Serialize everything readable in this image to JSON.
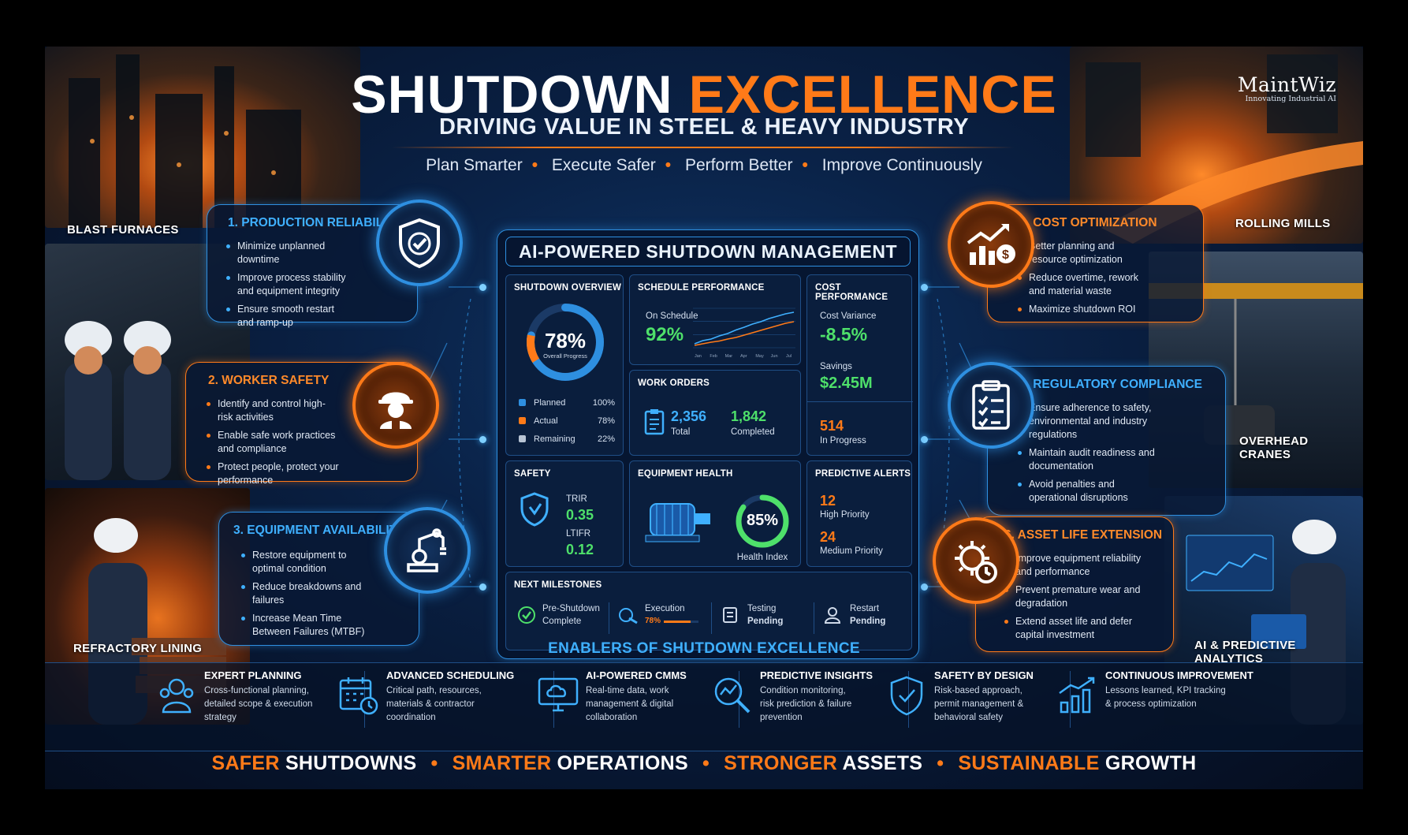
{
  "brand": {
    "name": "MaintWiz",
    "tagline": "Innovating Industrial AI"
  },
  "title_part1": "SHUTDOWN",
  "title_part2": "EXCELLENCE",
  "subtitle": "DRIVING VALUE IN STEEL & HEAVY INDUSTRY",
  "taglines": [
    "Plan Smarter",
    "Execute Safer",
    "Perform Better",
    "Improve Continuously"
  ],
  "photo_labels": {
    "blast": "BLAST FURNACES",
    "refractory": "REFRACTORY LINING",
    "rolling": "ROLLING MILLS",
    "cranes": "OVERHEAD CRANES",
    "ai": "AI & PREDICTIVE ANALYTICS"
  },
  "pillars": [
    {
      "title": "1. PRODUCTION RELIABILITY",
      "items": [
        "Minimize unplanned downtime",
        "Improve process stability and equipment integrity",
        "Ensure smooth restart and ramp-up"
      ],
      "icon": "shield-check-icon"
    },
    {
      "title": "2. WORKER SAFETY",
      "items": [
        "Identify and control high-risk activities",
        "Enable safe work practices and compliance",
        "Protect people, protect your performance"
      ],
      "icon": "worker-icon"
    },
    {
      "title": "3. EQUIPMENT AVAILABILITY",
      "items": [
        "Restore equipment to optimal condition",
        "Reduce breakdowns and failures",
        "Increase Mean Time Between Failures (MTBF)"
      ],
      "icon": "robot-arm-icon"
    },
    {
      "title": "4. COST OPTIMIZATION",
      "items": [
        "Better planning and resource optimization",
        "Reduce overtime, rework and material waste",
        "Maximize shutdown ROI"
      ],
      "icon": "cost-chart-icon"
    },
    {
      "title": "5. REGULATORY COMPLIANCE",
      "items": [
        "Ensure adherence to safety, environmental and industry regulations",
        "Maintain audit readiness and documentation",
        "Avoid penalties and operational disruptions"
      ],
      "icon": "clipboard-icon"
    },
    {
      "title": "6. ASSET LIFE EXTENSION",
      "items": [
        "Improve equipment reliability and performance",
        "Prevent premature wear and degradation",
        "Extend asset life and defer capital investment"
      ],
      "icon": "gear-clock-icon"
    }
  ],
  "dashboard": {
    "title": "AI-POWERED SHUTDOWN MANAGEMENT",
    "overview": {
      "title": "SHUTDOWN OVERVIEW",
      "value": "78%",
      "value_num": 78,
      "caption": "Overall Progress",
      "legend": [
        {
          "label": "Planned",
          "value": "100%",
          "color": "#2e8fe0"
        },
        {
          "label": "Actual",
          "value": "78%",
          "color": "#ff7a18"
        },
        {
          "label": "Remaining",
          "value": "22%",
          "color": "#b8c4d4"
        }
      ]
    },
    "schedule": {
      "title": "SCHEDULE PERFORMANCE",
      "label": "On Schedule",
      "value": "92%",
      "ticks": [
        "Jan",
        "Feb",
        "Mar",
        "Apr",
        "May",
        "Jun",
        "Jul"
      ],
      "planned": [
        10,
        18,
        22,
        30,
        36,
        45,
        52,
        60,
        66,
        74,
        80,
        86,
        90
      ],
      "actual": [
        6,
        10,
        14,
        17,
        22,
        26,
        32,
        38,
        44,
        50,
        56,
        62,
        66
      ]
    },
    "cost": {
      "title": "COST PERFORMANCE",
      "variance_label": "Cost Variance",
      "variance": "-8.5%",
      "savings_label": "Savings",
      "savings": "$2.45M"
    },
    "work_orders": {
      "title": "WORK ORDERS",
      "total": "2,356",
      "total_label": "Total",
      "completed": "1,842",
      "completed_label": "Completed",
      "in_progress": "514",
      "in_progress_label": "In Progress"
    },
    "safety": {
      "title": "SAFETY",
      "trir_label": "TRIR",
      "trir": "0.35",
      "ltifr_label": "LTIFR",
      "ltifr": "0.12"
    },
    "equipment": {
      "title": "EQUIPMENT HEALTH",
      "value": "85%",
      "value_num": 85,
      "caption": "Health Index"
    },
    "alerts": {
      "title": "PREDICTIVE ALERTS",
      "high": "12",
      "high_label": "High Priority",
      "medium": "24",
      "medium_label": "Medium Priority"
    },
    "milestones": {
      "title": "NEXT MILESTONES",
      "items": [
        {
          "l1": "Pre-Shutdown",
          "l2": "Complete"
        },
        {
          "l1": "Execution",
          "l2": "78%",
          "progress": 0.78
        },
        {
          "l1": "Testing",
          "l2": "Pending"
        },
        {
          "l1": "Restart",
          "l2": "Pending"
        }
      ]
    }
  },
  "enablers_title": "ENABLERS OF SHUTDOWN EXCELLENCE",
  "enablers": [
    {
      "title": "EXPERT PLANNING",
      "desc": [
        "Cross-functional planning,",
        "detailed scope & execution",
        "strategy"
      ]
    },
    {
      "title": "ADVANCED SCHEDULING",
      "desc": [
        "Critical path, resources,",
        "materials & contractor",
        "coordination"
      ]
    },
    {
      "title": "AI-POWERED CMMS",
      "desc": [
        "Real-time data, work",
        "management & digital",
        "collaboration"
      ]
    },
    {
      "title": "PREDICTIVE INSIGHTS",
      "desc": [
        "Condition monitoring,",
        "risk prediction & failure",
        "prevention"
      ]
    },
    {
      "title": "SAFETY BY DESIGN",
      "desc": [
        "Risk-based approach,",
        "permit management &",
        "behavioral safety"
      ]
    },
    {
      "title": "CONTINUOUS IMPROVEMENT",
      "desc": [
        "Lessons learned, KPI tracking",
        "& process optimization"
      ]
    }
  ],
  "footer": [
    {
      "a": "SAFER",
      "b": " SHUTDOWNS"
    },
    {
      "a": "SMARTER",
      "b": " OPERATIONS"
    },
    {
      "a": "STRONGER",
      "b": " ASSETS"
    },
    {
      "a": "SUSTAINABLE",
      "b": " GROWTH"
    }
  ]
}
